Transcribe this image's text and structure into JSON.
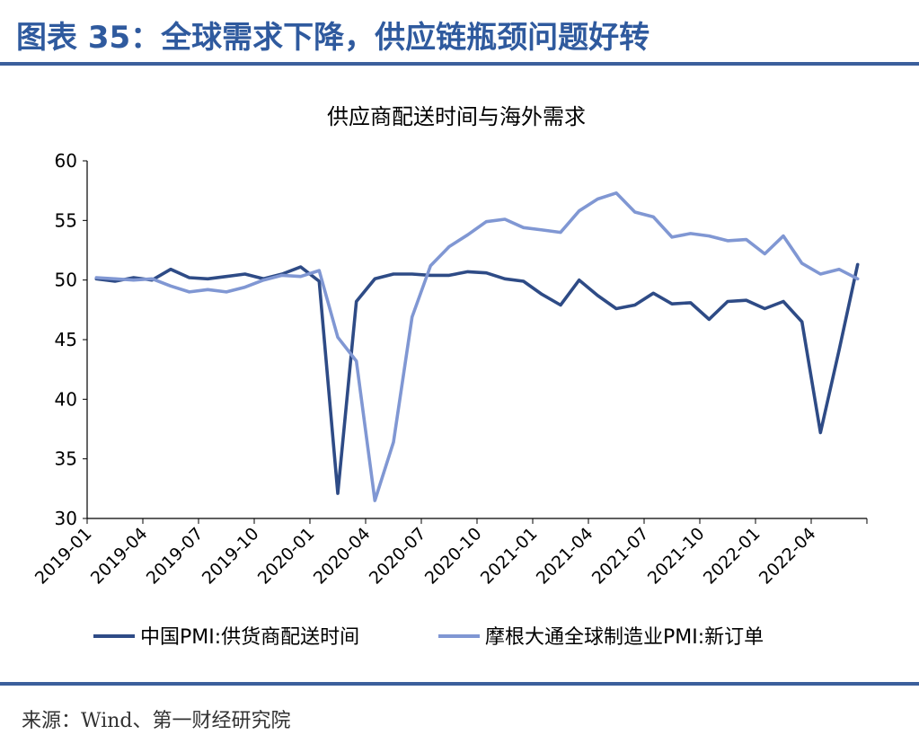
{
  "header": {
    "title": "图表 35：全球需求下降，供应链瓶颈问题好转"
  },
  "footer": {
    "source": "来源：Wind、第一财经研究院"
  },
  "colors": {
    "title": "#2f5a9e",
    "rule": "#3b5f9c",
    "series_dark": "#2e4b86",
    "series_light": "#8097d3"
  },
  "chart_data": {
    "type": "line",
    "title": "供应商配送时间与海外需求",
    "xlabel": "",
    "ylabel": "",
    "ylim": [
      30,
      60
    ],
    "yticks": [
      30,
      35,
      40,
      45,
      50,
      55,
      60
    ],
    "grid": false,
    "legend_position": "bottom",
    "x_tick_labels": [
      "2019-01",
      "2019-04",
      "2019-07",
      "2019-10",
      "2020-01",
      "2020-04",
      "2020-07",
      "2020-10",
      "2021-01",
      "2021-04",
      "2021-07",
      "2021-10",
      "2022-01",
      "2022-04"
    ],
    "x": [
      "2019-01",
      "2019-02",
      "2019-03",
      "2019-04",
      "2019-05",
      "2019-06",
      "2019-07",
      "2019-08",
      "2019-09",
      "2019-10",
      "2019-11",
      "2019-12",
      "2020-01",
      "2020-02",
      "2020-03",
      "2020-04",
      "2020-05",
      "2020-06",
      "2020-07",
      "2020-08",
      "2020-09",
      "2020-10",
      "2020-11",
      "2020-12",
      "2021-01",
      "2021-02",
      "2021-03",
      "2021-04",
      "2021-05",
      "2021-06",
      "2021-07",
      "2021-08",
      "2021-09",
      "2021-10",
      "2021-11",
      "2021-12",
      "2022-01",
      "2022-02",
      "2022-03",
      "2022-04",
      "2022-05",
      "2022-06"
    ],
    "series": [
      {
        "name": "中国PMI:供货商配送时间",
        "color": "#2e4b86",
        "values": [
          50.1,
          49.9,
          50.2,
          50.0,
          50.9,
          50.2,
          50.1,
          50.3,
          50.5,
          50.1,
          50.5,
          51.1,
          49.9,
          32.1,
          48.2,
          50.1,
          50.5,
          50.5,
          50.4,
          50.4,
          50.7,
          50.6,
          50.1,
          49.9,
          48.8,
          47.9,
          50.0,
          48.7,
          47.6,
          47.9,
          48.9,
          48.0,
          48.1,
          46.7,
          48.2,
          48.3,
          47.6,
          48.2,
          46.5,
          37.2,
          44.1,
          51.3
        ]
      },
      {
        "name": "摩根大通全球制造业PMI:新订单",
        "color": "#8097d3",
        "values": [
          50.2,
          50.1,
          50.0,
          50.1,
          49.5,
          49.0,
          49.2,
          49.0,
          49.4,
          50.0,
          50.4,
          50.3,
          50.8,
          45.2,
          43.2,
          31.5,
          36.4,
          46.9,
          51.2,
          52.8,
          53.8,
          54.9,
          55.1,
          54.4,
          54.2,
          54.0,
          55.8,
          56.8,
          57.3,
          55.7,
          55.3,
          53.6,
          53.9,
          53.7,
          53.3,
          53.4,
          52.2,
          53.7,
          51.4,
          50.5,
          50.9,
          50.1
        ]
      }
    ]
  }
}
